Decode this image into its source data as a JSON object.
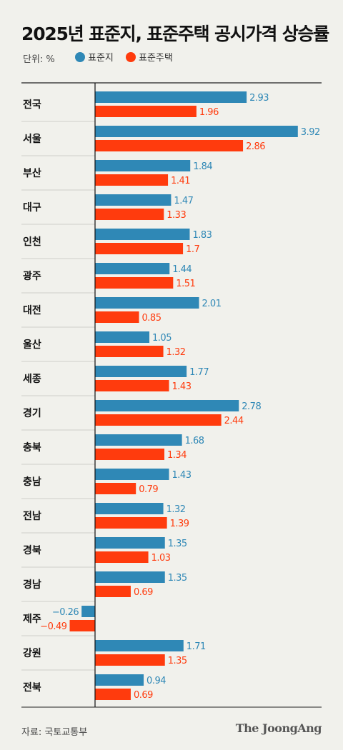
{
  "title": "2025년 표준지, 표준주택 공시가격 상승률",
  "unit_label": "단위: %",
  "legend": [
    {
      "name": "표준지",
      "color": "#2f88b6"
    },
    {
      "name": "표준주택",
      "color": "#ff3b0d"
    }
  ],
  "source": "자료: 국토교통부",
  "brand": "The JoongAng",
  "chart_data": {
    "type": "bar",
    "orientation": "horizontal",
    "categories": [
      "전국",
      "서울",
      "부산",
      "대구",
      "인천",
      "광주",
      "대전",
      "울산",
      "세종",
      "경기",
      "충북",
      "충남",
      "전남",
      "경북",
      "경남",
      "제주",
      "강원",
      "전북"
    ],
    "series": [
      {
        "name": "표준지",
        "color": "#2f88b6",
        "values": [
          2.93,
          3.92,
          1.84,
          1.47,
          1.83,
          1.44,
          2.01,
          1.05,
          1.77,
          2.78,
          1.68,
          1.43,
          1.32,
          1.35,
          1.35,
          -0.26,
          1.71,
          0.94
        ],
        "labels": [
          "2.93",
          "3.92",
          "1.84",
          "1.47",
          "1.83",
          "1.44",
          "2.01",
          "1.05",
          "1.77",
          "2.78",
          "1.68",
          "1.43",
          "1.32",
          "1.35",
          "1.35",
          "−0.26",
          "1.71",
          "0.94"
        ]
      },
      {
        "name": "표준주택",
        "color": "#ff3b0d",
        "values": [
          1.96,
          2.86,
          1.41,
          1.33,
          1.7,
          1.51,
          0.85,
          1.32,
          1.43,
          2.44,
          1.34,
          0.79,
          1.39,
          1.03,
          0.69,
          -0.49,
          1.35,
          0.69
        ],
        "labels": [
          "1.96",
          "2.86",
          "1.41",
          "1.33",
          "1.7",
          "1.51",
          "0.85",
          "1.32",
          "1.43",
          "2.44",
          "1.34",
          "0.79",
          "1.39",
          "1.03",
          "0.69",
          "−0.49",
          "1.35",
          "0.69"
        ]
      }
    ],
    "grid": false,
    "legend_position": "top-left"
  }
}
